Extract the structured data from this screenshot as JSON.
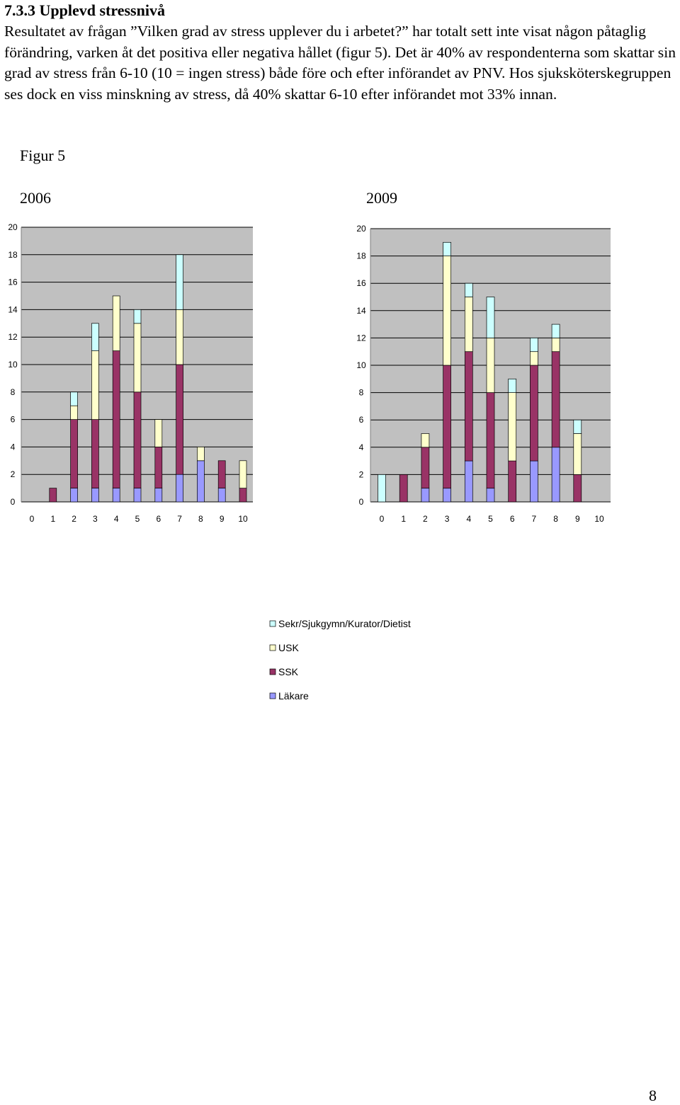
{
  "heading": "7.3.3 Upplevd stressnivå",
  "paragraph": "Resultatet av frågan ”Vilken grad av stress upplever du i arbetet?” har totalt sett inte visat någon påtaglig förändring, varken åt det positiva eller negativa hållet (figur 5). Det är 40% av respondenterna som skattar sin grad av stress från 6-10 (10 = ingen stress) både före och efter införandet av PNV. Hos sjuksköterskegruppen ses dock en viss minskning av stress, då 40% skattar 6-10 efter införandet mot 33% innan.",
  "figure_label": "Figur 5",
  "page_number": "8",
  "colors": {
    "Läkare": "#9999ff",
    "SSK": "#993366",
    "USK": "#ffffcc",
    "Sekr/Sjukgymn/Kurator/Dietist": "#ccffff",
    "plot_bg": "#c0c0c0"
  },
  "chart_data": [
    {
      "type": "bar",
      "stacked": true,
      "title": "2006",
      "categories": [
        "0",
        "1",
        "2",
        "3",
        "4",
        "5",
        "6",
        "7",
        "8",
        "9",
        "10"
      ],
      "ylim": [
        0,
        20
      ],
      "yticks": [
        "0",
        "2",
        "4",
        "6",
        "8",
        "10",
        "12",
        "14",
        "16",
        "18",
        "20"
      ],
      "grid": true,
      "series": [
        {
          "name": "Läkare",
          "values": [
            0,
            0,
            1,
            1,
            1,
            1,
            1,
            2,
            3,
            1,
            0
          ]
        },
        {
          "name": "SSK",
          "values": [
            0,
            1,
            5,
            5,
            10,
            7,
            3,
            8,
            0,
            2,
            1
          ]
        },
        {
          "name": "USK",
          "values": [
            0,
            0,
            1,
            5,
            4,
            5,
            2,
            4,
            1,
            0,
            2
          ]
        },
        {
          "name": "Sekr/Sjukgymn/Kurator/Dietist",
          "values": [
            0,
            0,
            1,
            2,
            0,
            1,
            0,
            4,
            0,
            0,
            0
          ]
        }
      ]
    },
    {
      "type": "bar",
      "stacked": true,
      "title": "2009",
      "categories": [
        "0",
        "1",
        "2",
        "3",
        "4",
        "5",
        "6",
        "7",
        "8",
        "9",
        "10"
      ],
      "ylim": [
        0,
        20
      ],
      "yticks": [
        "0",
        "2",
        "4",
        "6",
        "8",
        "10",
        "12",
        "14",
        "16",
        "18",
        "20"
      ],
      "grid": true,
      "series": [
        {
          "name": "Läkare",
          "values": [
            0,
            0,
            1,
            1,
            3,
            1,
            0,
            3,
            4,
            0,
            0
          ]
        },
        {
          "name": "SSK",
          "values": [
            0,
            2,
            3,
            9,
            8,
            7,
            3,
            7,
            7,
            2,
            0
          ]
        },
        {
          "name": "USK",
          "values": [
            0,
            0,
            1,
            8,
            4,
            4,
            5,
            1,
            1,
            3,
            0
          ]
        },
        {
          "name": "Sekr/Sjukgymn/Kurator/Dietist",
          "values": [
            2,
            0,
            0,
            1,
            1,
            3,
            1,
            1,
            1,
            1,
            0
          ]
        }
      ]
    }
  ],
  "legend": [
    "Sekr/Sjukgymn/Kurator/Dietist",
    "USK",
    "SSK",
    "Läkare"
  ]
}
